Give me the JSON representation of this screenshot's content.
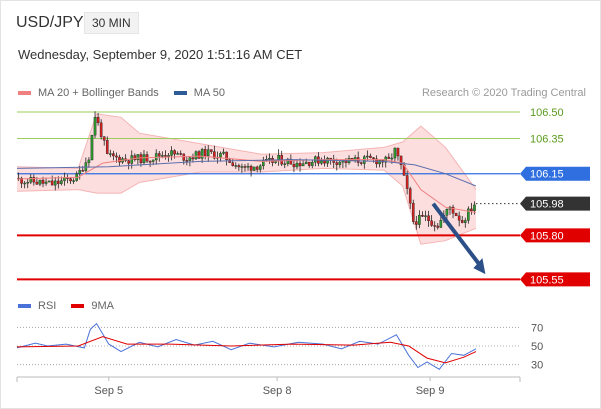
{
  "header": {
    "symbol": "USD/JPY",
    "timeframe": "30 MIN",
    "datetime": "Wednesday, September 9, 2020 1:51:16 AM CET",
    "copyright": "Research © 2020 Trading Central"
  },
  "price_legend": [
    {
      "name": "MA 20 + Bollinger Bands",
      "color": "#f08080"
    },
    {
      "name": "MA 50",
      "color": "#2e5c99"
    }
  ],
  "rsi_legend": [
    {
      "name": "RSI",
      "color": "#4a72d8"
    },
    {
      "name": "9MA",
      "color": "#e00000"
    }
  ],
  "chart_data": [
    {
      "type": "candlestick",
      "panel": "price",
      "x_tick_labels": [
        "Sep 5",
        "Sep 8",
        "Sep 9"
      ],
      "x_tick_index": [
        30,
        85,
        135
      ],
      "bar_count": 150,
      "ylim": [
        105.49,
        106.54
      ],
      "levels": [
        {
          "value": 106.5,
          "label": "106.50",
          "kind": "resistance-green",
          "color": "#9acd5c"
        },
        {
          "value": 106.35,
          "label": "106.35",
          "kind": "resistance-green",
          "color": "#9acd5c"
        },
        {
          "value": 106.15,
          "label": "106.15",
          "kind": "pivot",
          "color": "#2f6fe0"
        },
        {
          "value": 105.98,
          "label": "105.98",
          "kind": "last-price",
          "color": "#333333"
        },
        {
          "value": 105.8,
          "label": "105.80",
          "kind": "support",
          "color": "#e00000"
        },
        {
          "value": 105.55,
          "label": "105.55",
          "kind": "support",
          "color": "#e00000"
        }
      ],
      "close_path": [
        [
          0,
          106.12
        ],
        [
          8,
          106.1
        ],
        [
          12,
          106.09
        ],
        [
          20,
          106.13
        ],
        [
          24,
          106.25
        ],
        [
          26,
          106.48
        ],
        [
          28,
          106.38
        ],
        [
          30,
          106.25
        ],
        [
          36,
          106.23
        ],
        [
          44,
          106.24
        ],
        [
          50,
          106.27
        ],
        [
          56,
          106.24
        ],
        [
          62,
          106.27
        ],
        [
          68,
          106.25
        ],
        [
          74,
          106.18
        ],
        [
          80,
          106.2
        ],
        [
          86,
          106.23
        ],
        [
          92,
          106.21
        ],
        [
          100,
          106.23
        ],
        [
          108,
          106.22
        ],
        [
          116,
          106.23
        ],
        [
          122,
          106.22
        ],
        [
          124,
          106.28
        ],
        [
          126,
          106.19
        ],
        [
          128,
          106.05
        ],
        [
          130,
          105.88
        ],
        [
          134,
          105.9
        ],
        [
          138,
          105.86
        ],
        [
          142,
          105.96
        ],
        [
          146,
          105.88
        ],
        [
          150,
          105.98
        ]
      ],
      "ma20": [
        [
          0,
          106.12
        ],
        [
          20,
          106.13
        ],
        [
          28,
          106.21
        ],
        [
          40,
          106.24
        ],
        [
          60,
          106.25
        ],
        [
          80,
          106.22
        ],
        [
          100,
          106.23
        ],
        [
          120,
          106.23
        ],
        [
          126,
          106.21
        ],
        [
          132,
          106.06
        ],
        [
          140,
          105.96
        ],
        [
          150,
          105.93
        ]
      ],
      "bollinger_upper": [
        [
          0,
          106.19
        ],
        [
          20,
          106.18
        ],
        [
          26,
          106.49
        ],
        [
          34,
          106.47
        ],
        [
          40,
          106.38
        ],
        [
          60,
          106.32
        ],
        [
          80,
          106.26
        ],
        [
          100,
          106.27
        ],
        [
          120,
          106.3
        ],
        [
          126,
          106.33
        ],
        [
          132,
          106.42
        ],
        [
          140,
          106.3
        ],
        [
          150,
          106.06
        ]
      ],
      "bollinger_lower": [
        [
          0,
          106.05
        ],
        [
          20,
          106.06
        ],
        [
          26,
          106.04
        ],
        [
          34,
          106.04
        ],
        [
          40,
          106.1
        ],
        [
          60,
          106.16
        ],
        [
          80,
          106.16
        ],
        [
          100,
          106.18
        ],
        [
          120,
          106.17
        ],
        [
          126,
          106.08
        ],
        [
          132,
          105.75
        ],
        [
          140,
          105.77
        ],
        [
          150,
          105.84
        ]
      ],
      "ma50": [
        [
          0,
          106.18
        ],
        [
          30,
          106.19
        ],
        [
          60,
          106.22
        ],
        [
          90,
          106.23
        ],
        [
          120,
          106.22
        ],
        [
          130,
          106.2
        ],
        [
          140,
          106.15
        ],
        [
          150,
          106.08
        ]
      ],
      "forecast_arrow": {
        "from": [
          136,
          105.98
        ],
        "to": [
          140,
          105.58
        ]
      }
    },
    {
      "type": "line",
      "panel": "rsi",
      "ylim": [
        20,
        80
      ],
      "y_tick_labels": [
        {
          "value": 70,
          "label": "70"
        },
        {
          "value": 50,
          "label": "50"
        },
        {
          "value": 30,
          "label": "30"
        }
      ],
      "series": [
        {
          "name": "RSI",
          "points": [
            [
              0,
              48
            ],
            [
              6,
              53
            ],
            [
              10,
              50
            ],
            [
              16,
              52
            ],
            [
              22,
              48
            ],
            [
              24,
              68
            ],
            [
              26,
              74
            ],
            [
              30,
              52
            ],
            [
              34,
              44
            ],
            [
              40,
              54
            ],
            [
              46,
              49
            ],
            [
              52,
              57
            ],
            [
              58,
              51
            ],
            [
              64,
              55
            ],
            [
              70,
              46
            ],
            [
              76,
              53
            ],
            [
              84,
              49
            ],
            [
              92,
              54
            ],
            [
              100,
              52
            ],
            [
              106,
              47
            ],
            [
              112,
              55
            ],
            [
              118,
              52
            ],
            [
              124,
              62
            ],
            [
              128,
              40
            ],
            [
              131,
              27
            ],
            [
              134,
              33
            ],
            [
              138,
              25
            ],
            [
              142,
              42
            ],
            [
              146,
              40
            ],
            [
              150,
              47
            ]
          ]
        },
        {
          "name": "9MA",
          "points": [
            [
              0,
              49
            ],
            [
              20,
              50
            ],
            [
              28,
              60
            ],
            [
              36,
              52
            ],
            [
              50,
              52
            ],
            [
              70,
              50
            ],
            [
              90,
              52
            ],
            [
              110,
              51
            ],
            [
              122,
              54
            ],
            [
              128,
              50
            ],
            [
              134,
              37
            ],
            [
              140,
              32
            ],
            [
              146,
              38
            ],
            [
              150,
              44
            ]
          ]
        }
      ]
    }
  ]
}
